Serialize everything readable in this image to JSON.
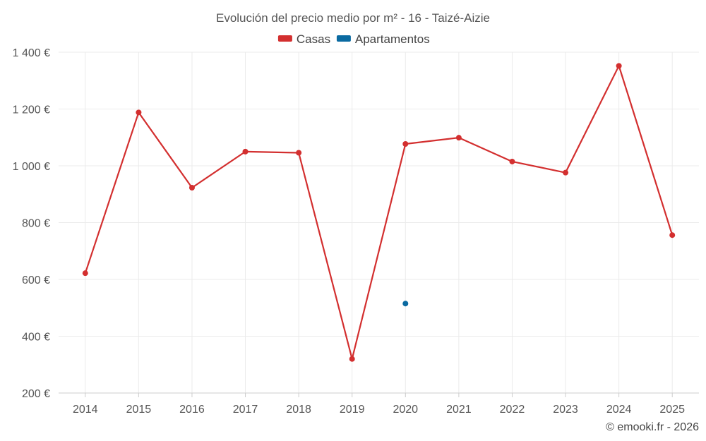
{
  "chart_data": {
    "type": "line",
    "title": "Evolución del precio medio por m² - 16 - Taizé-Aizie",
    "categories": [
      "2014",
      "2015",
      "2016",
      "2017",
      "2018",
      "2019",
      "2020",
      "2021",
      "2022",
      "2023",
      "2024",
      "2025"
    ],
    "series": [
      {
        "name": "Casas",
        "color": "#d32f2f",
        "values": [
          622,
          1188,
          923,
          1050,
          1046,
          320,
          1077,
          1099,
          1015,
          976,
          1352,
          756
        ]
      },
      {
        "name": "Apartamentos",
        "color": "#0a6aa1",
        "values": [
          null,
          null,
          null,
          null,
          null,
          null,
          515,
          null,
          null,
          null,
          null,
          null
        ]
      }
    ],
    "ylim": [
      200,
      1400
    ],
    "yticks": [
      {
        "value": 200,
        "label": "200 €"
      },
      {
        "value": 400,
        "label": "400 €"
      },
      {
        "value": 600,
        "label": "600 €"
      },
      {
        "value": 800,
        "label": "800 €"
      },
      {
        "value": 1000,
        "label": "1 000 €"
      },
      {
        "value": 1200,
        "label": "1 200 €"
      },
      {
        "value": 1400,
        "label": "1 400 €"
      }
    ],
    "legend_position": "top-center",
    "grid": true
  },
  "credit": "© emooki.fr - 2026"
}
